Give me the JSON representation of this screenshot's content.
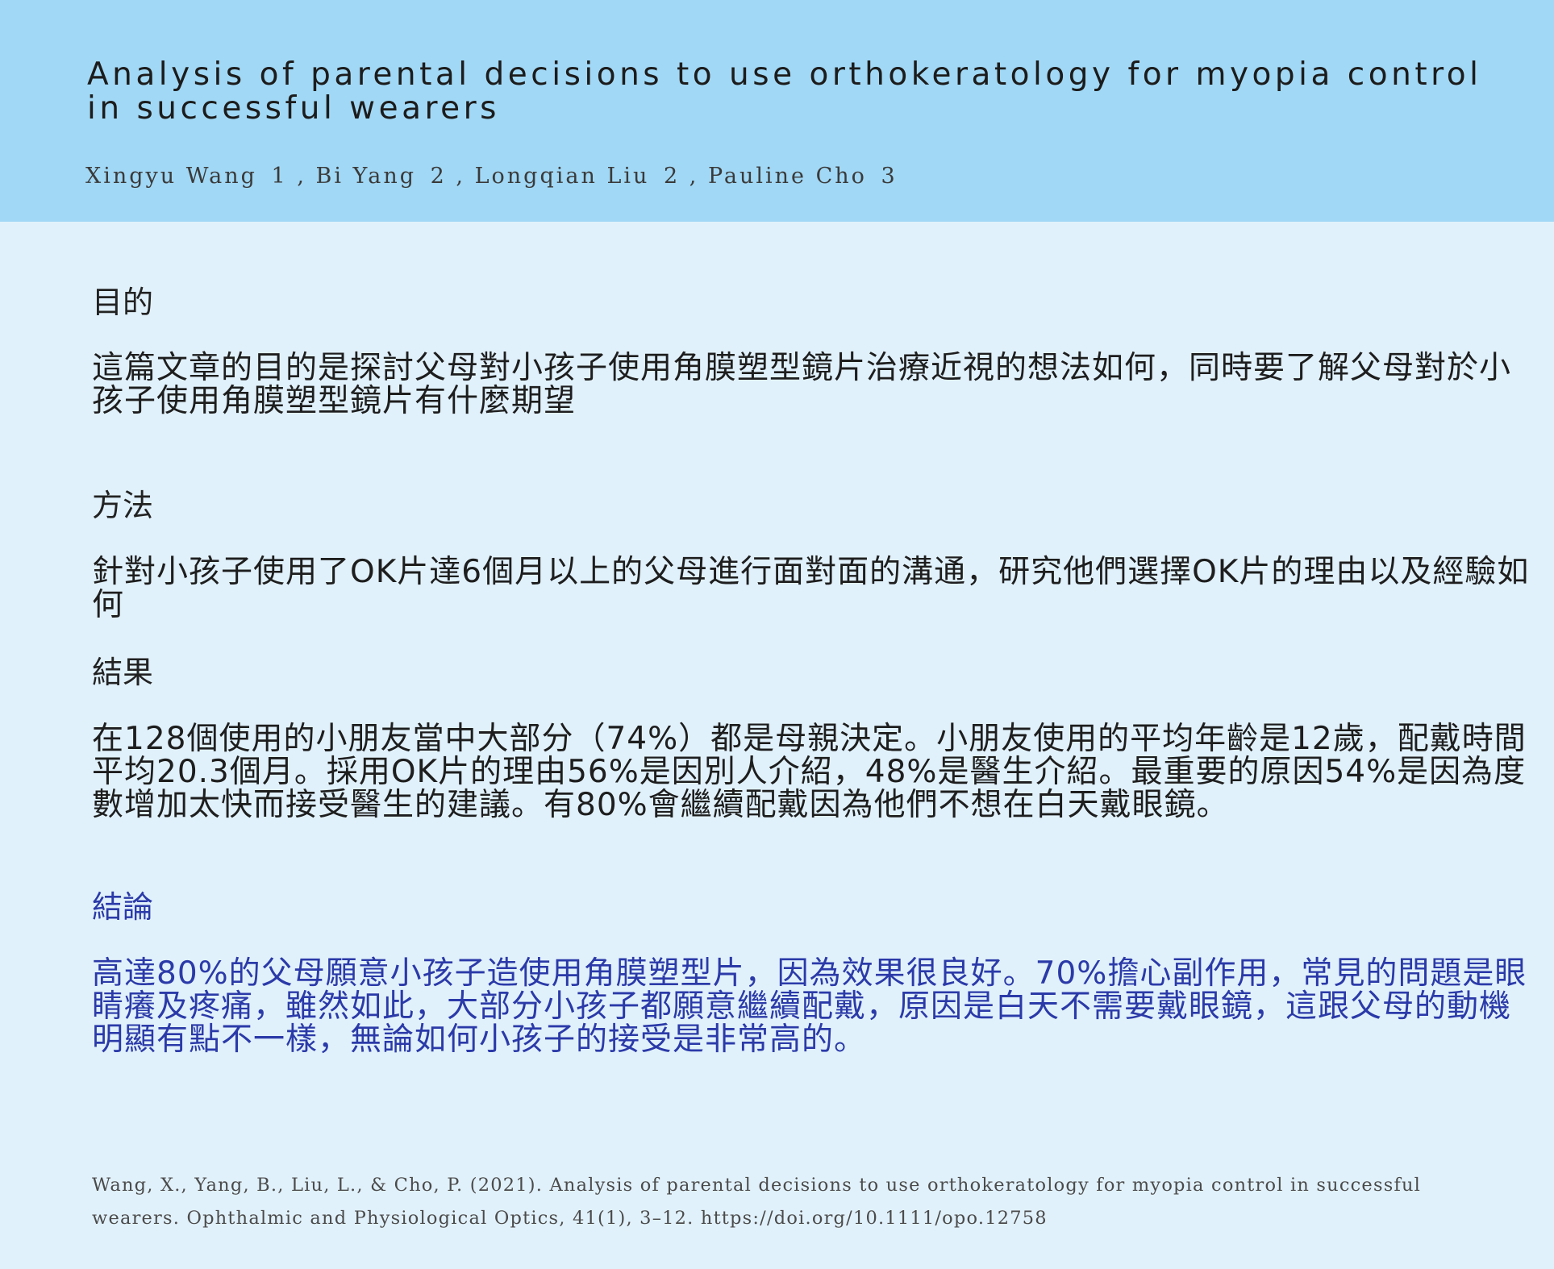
{
  "header": {
    "title": "Analysis of parental decisions to use orthokeratology for myopia control in successful wearers",
    "authors": [
      {
        "name": "Xingyu Wang",
        "affiliation": "1"
      },
      {
        "name": "Bi Yang",
        "affiliation": "2"
      },
      {
        "name": "Longqian Liu",
        "affiliation": "2"
      },
      {
        "name": "Pauline Cho",
        "affiliation": "3"
      }
    ]
  },
  "sections": {
    "purpose": {
      "heading": "目的",
      "body": "這篇文章的目的是探討父母對小孩子使用角膜塑型鏡片治療近視的想法如何，同時要了解父母對於小孩子使用角膜塑型鏡片有什麼期望"
    },
    "methods": {
      "heading": "方法",
      "body": "針對小孩子使用了OK片達6個月以上的父母進行面對面的溝通，研究他們選擇OK片的理由以及經驗如何"
    },
    "results": {
      "heading": "結果",
      "body": "在128個使用的小朋友當中大部分（74%）都是母親決定。小朋友使用的平均年齡是12歲，配戴時間平均20.3個月。採用OK片的理由56%是因別人介紹，48%是醫生介紹。最重要的原因54%是因為度數增加太快而接受醫生的建議。有80%會繼續配戴因為他們不想在白天戴眼鏡。"
    },
    "conclusion": {
      "heading": "結論",
      "body": "高達80%的父母願意小孩子造使用角膜塑型片，因為效果很良好。70%擔心副作用，常見的問題是眼睛癢及疼痛，雖然如此，大部分小孩子都願意繼續配戴，原因是白天不需要戴眼鏡，這跟父母的動機明顯有點不一樣，無論如何小孩子的接受是非常高的。"
    }
  },
  "citation": "Wang, X., Yang, B., Liu, L., & Cho, P. (2021). Analysis of parental decisions to use orthokeratology for myopia control in successful wearers. Ophthalmic and Physiological Optics, 41(1), 3–12. https://doi.org/10.1111/opo.12758",
  "colors": {
    "header_bg": "#a1d8f5",
    "page_bg": "#e1f1fb",
    "conclusion_accent": "#2b3aa8"
  }
}
